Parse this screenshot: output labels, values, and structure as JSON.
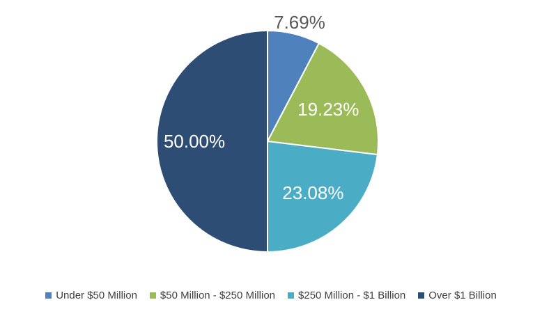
{
  "chart_data": {
    "type": "pie",
    "slices": [
      {
        "label": "Under $50 Million",
        "value": 7.69,
        "display": "7.69%",
        "color": "#4F81BD",
        "label_color": "#595959"
      },
      {
        "label": "$50 Million - $250 Million",
        "value": 19.23,
        "display": "19.23%",
        "color": "#9BBB59",
        "label_color": "#ffffff"
      },
      {
        "label": "$250 Million - $1 Billion",
        "value": 23.08,
        "display": "23.08%",
        "color": "#4BACC6",
        "label_color": "#ffffff"
      },
      {
        "label": "Over $1 Billion",
        "value": 50.0,
        "display": "50.00%",
        "color": "#2E4D74",
        "label_color": "#ffffff"
      }
    ],
    "start_angle": "12 o'clock",
    "direction": "clockwise",
    "legend_position": "bottom"
  }
}
